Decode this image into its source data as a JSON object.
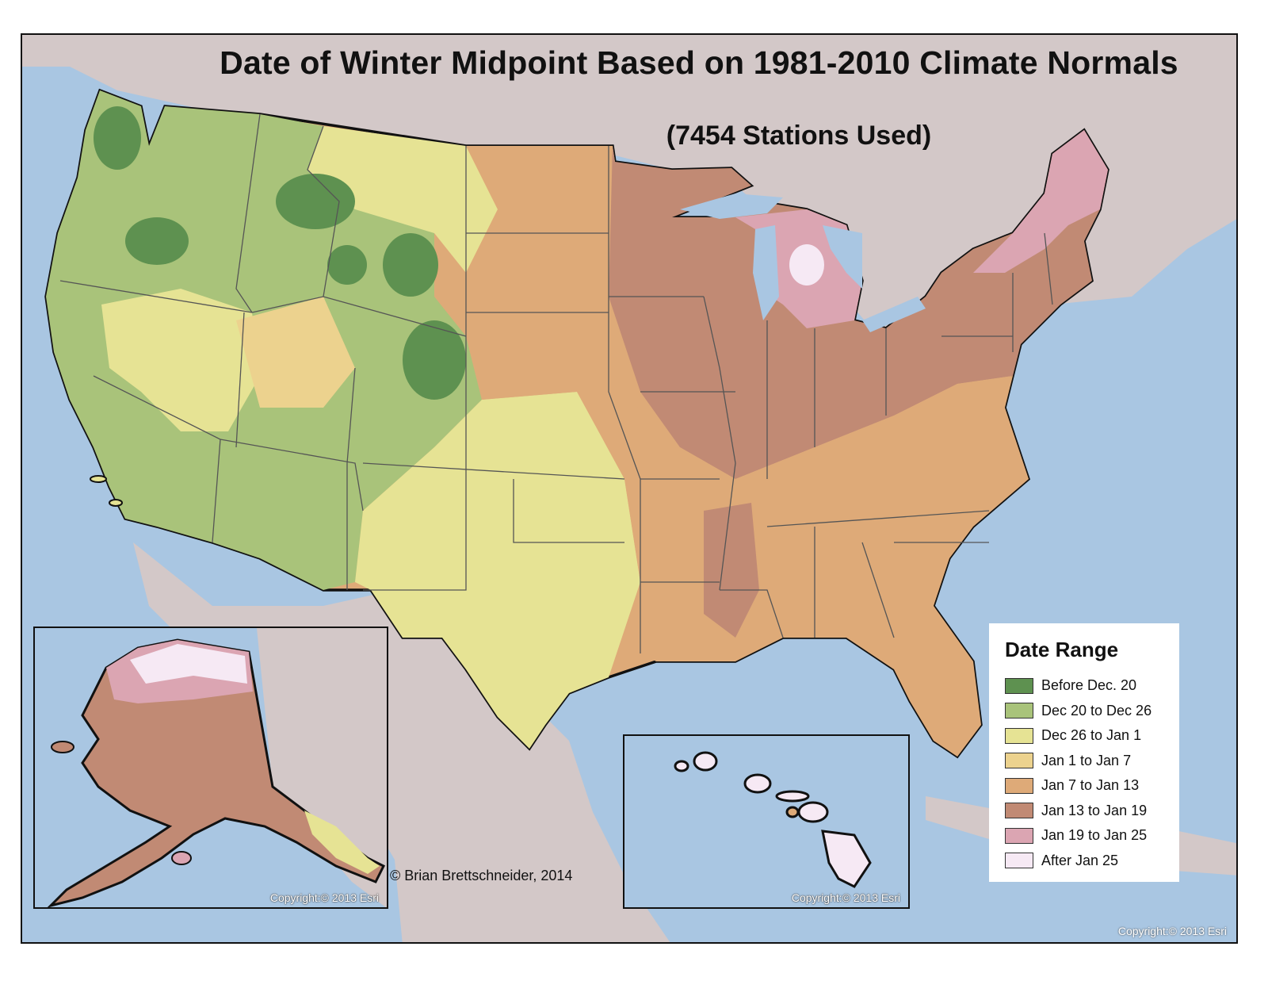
{
  "title": "Date of Winter Midpoint Based on 1981-2010 Climate Normals",
  "subtitle": "(7454 Stations Used)",
  "credit": "© Brian Brettschneider, 2014",
  "copyright_alaska": "Copyright:© 2013 Esri",
  "copyright_hawaii": "Copyright:© 2013 Esri",
  "copyright_main": "Copyright:© 2013 Esri",
  "legend": {
    "title": "Date Range",
    "items": [
      {
        "label": "Before Dec. 20",
        "color": "#5e9150"
      },
      {
        "label": "Dec 20 to Dec 26",
        "color": "#a9c37a"
      },
      {
        "label": "Dec 26 to Jan 1",
        "color": "#e6e394"
      },
      {
        "label": "Jan 1 to Jan 7",
        "color": "#ecd28e"
      },
      {
        "label": "Jan 7 to Jan 13",
        "color": "#deaa78"
      },
      {
        "label": "Jan 13 to Jan 19",
        "color": "#c18a74"
      },
      {
        "label": "Jan 19 to Jan 25",
        "color": "#dba5b2"
      },
      {
        "label": "After Jan 25",
        "color": "#f6e9f4"
      }
    ]
  },
  "colors": {
    "ocean": "#a9c6e2",
    "land_background": "#d3c8c8",
    "boundary": "#111111",
    "state_line": "#555555"
  }
}
